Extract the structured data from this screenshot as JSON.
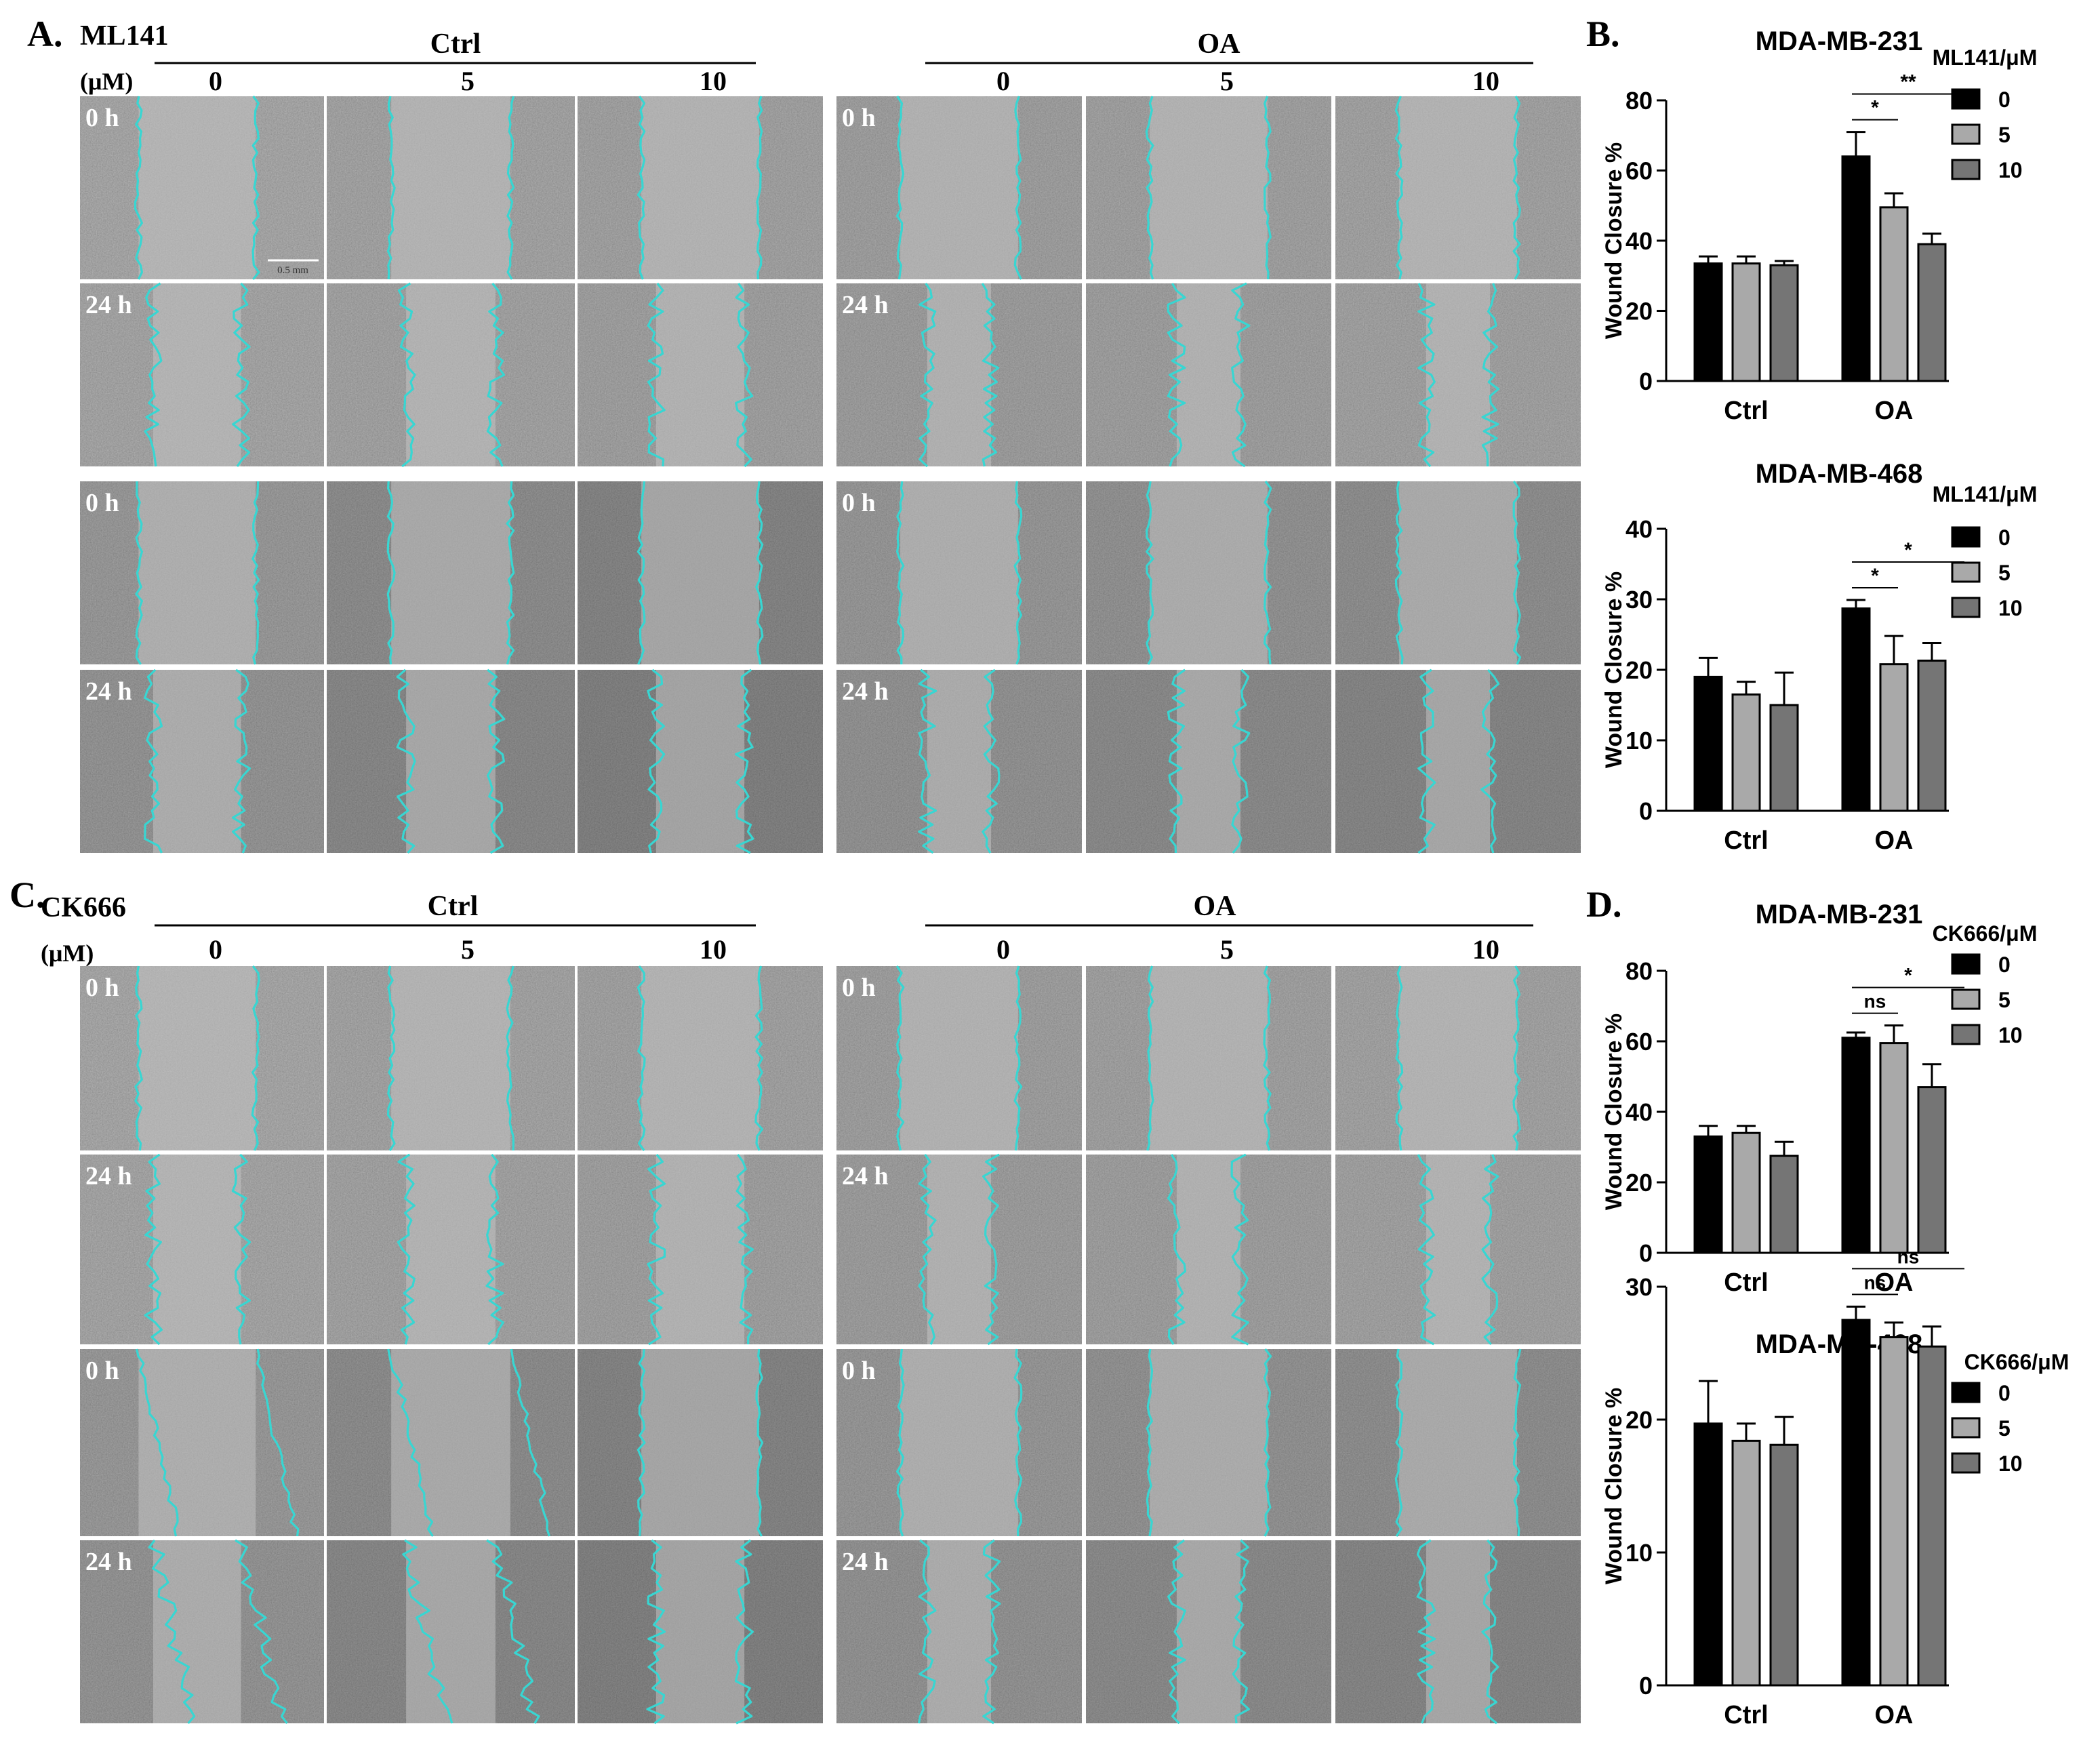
{
  "figure": {
    "panels": {
      "A": {
        "letter": "A.",
        "inhibitor": "ML141",
        "unit": "(μM)",
        "groups": [
          "Ctrl",
          "OA"
        ],
        "doses": [
          "0",
          "5",
          "10",
          "0",
          "5",
          "10"
        ],
        "time_labels": [
          "0 h",
          "24 h",
          "0 h",
          "24 h"
        ],
        "scale_bar": "0.5 mm"
      },
      "B": {
        "letter": "B."
      },
      "C": {
        "letter": "C.",
        "inhibitor": "CK666",
        "unit": "(μM)",
        "groups": [
          "Ctrl",
          "OA"
        ],
        "doses": [
          "0",
          "5",
          "10",
          "0",
          "5",
          "10"
        ],
        "time_labels": [
          "0 h",
          "24 h",
          "0 h",
          "24 h"
        ]
      },
      "D": {
        "letter": "D."
      }
    },
    "colors": {
      "bar_0": "#000000",
      "bar_5": "#a9a9a9",
      "bar_10": "#757575",
      "wound_outline": "#38d6d2"
    }
  },
  "chart_data": [
    {
      "panel": "B",
      "type": "bar",
      "title": "MDA-MB-231",
      "ylabel": "Wound Closure %",
      "xlabel": "",
      "ylim": [
        0,
        80
      ],
      "yticks": [
        0,
        20,
        40,
        60,
        80
      ],
      "categories": [
        "Ctrl",
        "OA"
      ],
      "legend_title": "ML141/μM",
      "series": [
        {
          "name": "0",
          "color": "#000000",
          "values": [
            33.5,
            64
          ],
          "errors": [
            2,
            7
          ]
        },
        {
          "name": "5",
          "color": "#a9a9a9",
          "values": [
            33.5,
            49.5
          ],
          "errors": [
            2,
            4
          ]
        },
        {
          "name": "10",
          "color": "#757575",
          "values": [
            33,
            39
          ],
          "errors": [
            1.2,
            3
          ]
        }
      ],
      "annotations": [
        {
          "from": 0,
          "to": 1,
          "text": "*"
        },
        {
          "from": 0,
          "to": 2,
          "text": "**"
        }
      ]
    },
    {
      "panel": "B",
      "type": "bar",
      "title": "MDA-MB-468",
      "ylabel": "Wound Closure %",
      "xlabel": "",
      "ylim": [
        0,
        40
      ],
      "yticks": [
        0,
        10,
        20,
        30,
        40
      ],
      "categories": [
        "Ctrl",
        "OA"
      ],
      "legend_title": "ML141/μM",
      "series": [
        {
          "name": "0",
          "color": "#000000",
          "values": [
            19,
            28.7
          ],
          "errors": [
            2.7,
            1.2
          ]
        },
        {
          "name": "5",
          "color": "#a9a9a9",
          "values": [
            16.5,
            20.8
          ],
          "errors": [
            1.8,
            4
          ]
        },
        {
          "name": "10",
          "color": "#757575",
          "values": [
            15,
            21.3
          ],
          "errors": [
            4.6,
            2.5
          ]
        }
      ],
      "annotations": [
        {
          "from": 0,
          "to": 1,
          "text": "*"
        },
        {
          "from": 0,
          "to": 2,
          "text": "*"
        }
      ]
    },
    {
      "panel": "D",
      "type": "bar",
      "title": "MDA-MB-231",
      "ylabel": "Wound Closure %",
      "xlabel": "",
      "ylim": [
        0,
        80
      ],
      "yticks": [
        0,
        20,
        40,
        60,
        80
      ],
      "categories": [
        "Ctrl",
        "OA"
      ],
      "legend_title": "CK666/μM",
      "series": [
        {
          "name": "0",
          "color": "#000000",
          "values": [
            33,
            61
          ],
          "errors": [
            3,
            1.5
          ]
        },
        {
          "name": "5",
          "color": "#a9a9a9",
          "values": [
            34,
            59.5
          ],
          "errors": [
            2,
            5
          ]
        },
        {
          "name": "10",
          "color": "#757575",
          "values": [
            27.5,
            47
          ],
          "errors": [
            4,
            6.5
          ]
        }
      ],
      "annotations": [
        {
          "from": 0,
          "to": 1,
          "text": "ns"
        },
        {
          "from": 0,
          "to": 2,
          "text": "*"
        }
      ]
    },
    {
      "panel": "D",
      "type": "bar",
      "title": "MDA-MB-468",
      "ylabel": "Wound Closure %",
      "xlabel": "",
      "ylim": [
        0,
        30
      ],
      "yticks": [
        0,
        10,
        20,
        30
      ],
      "categories": [
        "Ctrl",
        "OA"
      ],
      "legend_title": "CK666/μM",
      "series": [
        {
          "name": "0",
          "color": "#000000",
          "values": [
            19.7,
            27.5
          ],
          "errors": [
            3.2,
            1
          ]
        },
        {
          "name": "5",
          "color": "#a9a9a9",
          "values": [
            18.4,
            26.2
          ],
          "errors": [
            1.3,
            1.1
          ]
        },
        {
          "name": "10",
          "color": "#757575",
          "values": [
            18.1,
            25.5
          ],
          "errors": [
            2.1,
            1.5
          ]
        }
      ],
      "annotations": [
        {
          "from": 0,
          "to": 1,
          "text": "ns"
        },
        {
          "from": 0,
          "to": 2,
          "text": "ns"
        }
      ]
    }
  ]
}
